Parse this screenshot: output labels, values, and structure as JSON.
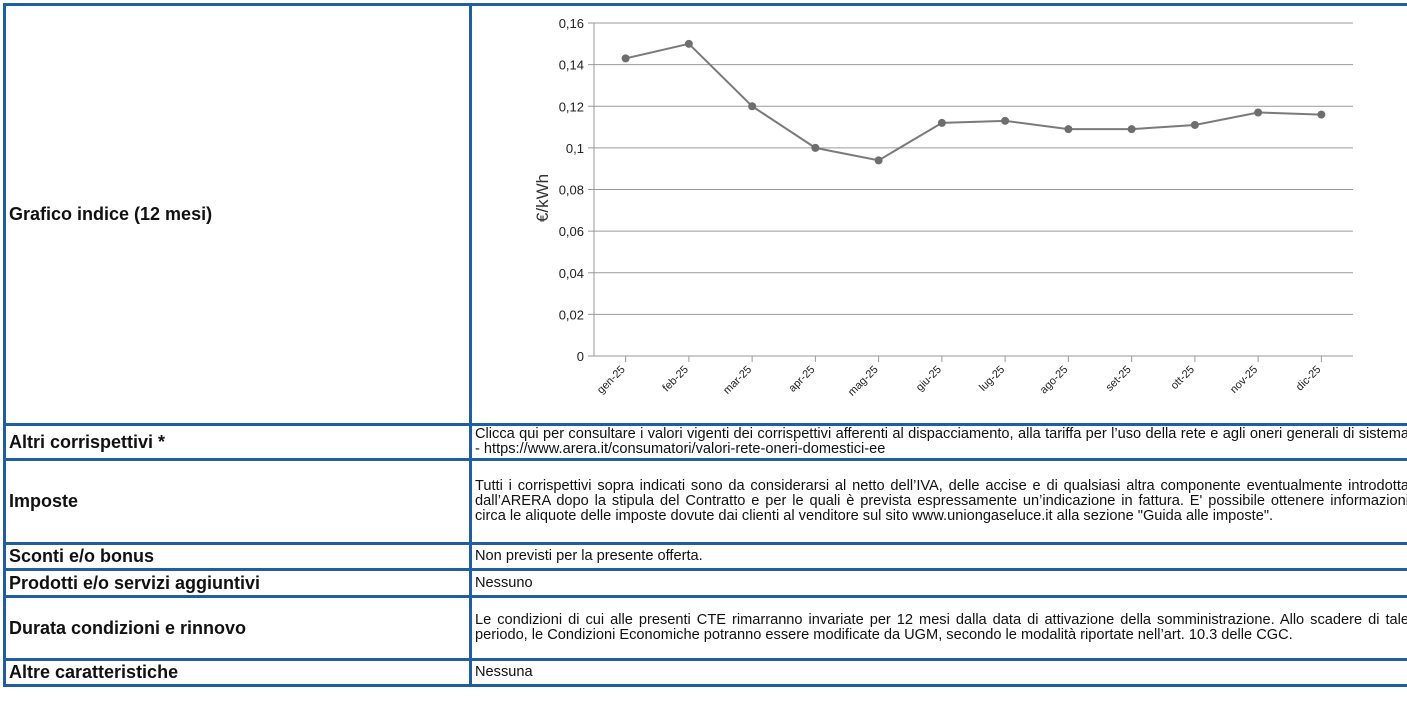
{
  "rows": {
    "grafico": {
      "label": "Grafico indice (12 mesi)"
    },
    "altri": {
      "label": "Altri corrispettivi *",
      "value": "Clicca qui per consultare i valori vigenti dei corrispettivi afferenti al dispacciamento, alla tariffa per l’uso della rete e agli oneri generali di sistema - https://www.arera.it/consumatori/valori-rete-oneri-domestici-ee"
    },
    "imposte": {
      "label": "Imposte",
      "value": "Tutti i corrispettivi sopra indicati sono da considerarsi al netto dell’IVA, delle accise e di qualsiasi altra componente eventualmente introdotta dall’ARERA dopo la stipula del Contratto e per le quali è prevista espressamente un’indicazione in fattura. E' possibile ottenere informazioni circa le aliquote delle imposte dovute dai clienti al venditore sul sito www.uniongaseluce.it alla sezione \"Guida alle imposte\"."
    },
    "sconti": {
      "label": "Sconti e/o bonus",
      "value": "Non previsti per la presente offerta."
    },
    "prodotti": {
      "label": "Prodotti e/o servizi aggiuntivi",
      "value": "Nessuno"
    },
    "durata": {
      "label": "Durata condizioni e rinnovo",
      "value": "Le condizioni di cui alle presenti CTE rimarranno invariate per 12 mesi dalla data di attivazione della somministrazione. Allo scadere di tale periodo, le Condizioni Economiche potranno essere modificate da UGM, secondo le modalità riportate nell’art. 10.3 delle CGC."
    },
    "altre": {
      "label": "Altre caratteristiche",
      "value": "Nessuna"
    }
  },
  "chart_data": {
    "type": "line",
    "ylabel": "€/kWh",
    "ylim": [
      0,
      0.16
    ],
    "yticks": [
      0,
      0.02,
      0.04,
      0.06,
      0.08,
      0.1,
      0.12,
      0.14,
      0.16
    ],
    "ytick_labels": [
      "0",
      "0,02",
      "0,04",
      "0,06",
      "0,08",
      "0,1",
      "0,12",
      "0,14",
      "0,16"
    ],
    "categories": [
      "gen-25",
      "feb-25",
      "mar-25",
      "apr-25",
      "mag-25",
      "giu-25",
      "lug-25",
      "ago-25",
      "set-25",
      "ott-25",
      "nov-25",
      "dic-25"
    ],
    "values": [
      0.143,
      0.15,
      0.12,
      0.1,
      0.094,
      0.112,
      0.113,
      0.109,
      0.109,
      0.111,
      0.117,
      0.116
    ],
    "grid": true,
    "line_color": "#7a7a7a",
    "marker_color": "#6e6e6e"
  }
}
